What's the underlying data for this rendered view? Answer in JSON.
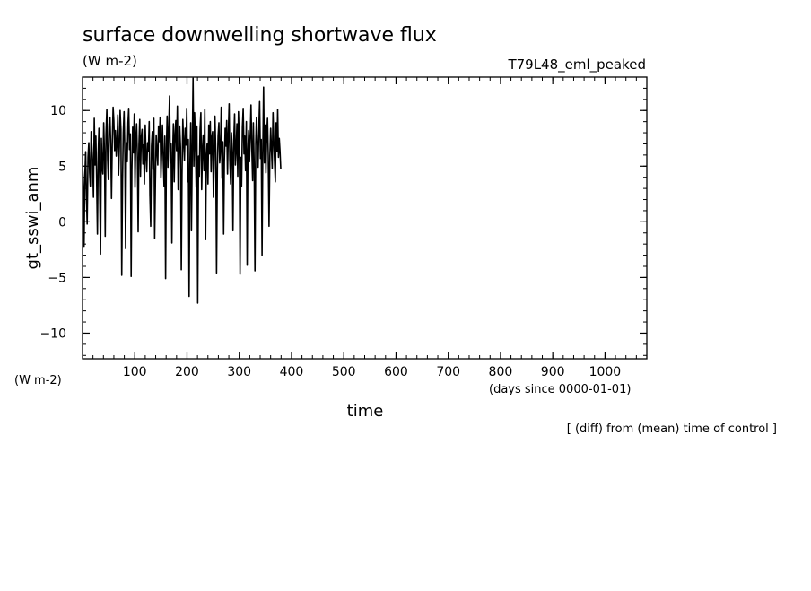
{
  "header": {
    "title": "surface downwelling shortwave flux",
    "units": "(W m-2)",
    "run": "T79L48_eml_peaked"
  },
  "footer": {
    "left_units": "(W m-2)",
    "x_units": "(days since 0000-01-01)",
    "note": "[ (diff) from (mean) time of control ]"
  },
  "chart_data": {
    "type": "line",
    "title": "surface downwelling shortwave flux",
    "xlabel": "time",
    "ylabel": "gt_sswi_anm",
    "xlim": [
      0,
      1080
    ],
    "ylim": [
      -12.3,
      13
    ],
    "xticks": [
      100,
      200,
      300,
      400,
      500,
      600,
      700,
      800,
      900,
      1000
    ],
    "yticks": [
      -10,
      -5,
      0,
      5,
      10
    ],
    "x_minor_step": 20,
    "y_minor_step": 1,
    "grid": false,
    "series": [
      {
        "x_start": 0,
        "x_step": 1.5,
        "values": [
          5.2,
          3.1,
          -2.2,
          4.1,
          6.3,
          2.0,
          -0.2,
          5.8,
          7.1,
          4.4,
          3.2,
          8.1,
          6.6,
          4.9,
          2.2,
          9.3,
          5.1,
          7.7,
          3.9,
          -1.1,
          6.2,
          8.4,
          2.6,
          -2.9,
          7.5,
          5.0,
          4.3,
          8.9,
          6.1,
          -1.3,
          7.9,
          10.1,
          5.6,
          3.8,
          8.8,
          9.4,
          6.7,
          2.1,
          7.3,
          10.3,
          9.1,
          6.4,
          8.2,
          5.9,
          7.0,
          9.6,
          4.2,
          6.8,
          10.0,
          8.3,
          -4.8,
          3.7,
          8.0,
          9.9,
          6.0,
          -2.4,
          7.1,
          5.4,
          8.9,
          10.2,
          6.5,
          7.9,
          -4.9,
          4.6,
          8.5,
          6.2,
          9.7,
          3.1,
          7.4,
          8.8,
          5.7,
          -0.9,
          6.9,
          9.2,
          4.1,
          7.6,
          8.3,
          5.2,
          6.9,
          3.4,
          8.7,
          5.9,
          4.5,
          7.1,
          6.3,
          9.0,
          2.4,
          -0.4,
          6.8,
          8.1,
          4.7,
          9.3,
          -1.5,
          3.3,
          7.8,
          6.4,
          5.1,
          8.6,
          7.2,
          9.4,
          4.0,
          6.1,
          8.7,
          5.6,
          3.2,
          7.7,
          -5.1,
          6.6,
          9.5,
          4.9,
          8.4,
          11.3,
          5.3,
          7.0,
          -1.9,
          6.2,
          8.8,
          3.6,
          7.9,
          9.1,
          6.4,
          10.4,
          2.9,
          5.7,
          8.6,
          6.7,
          -4.3,
          4.2,
          9.2,
          7.1,
          5.5,
          8.4,
          6.9,
          10.2,
          3.6,
          7.4,
          -6.7,
          5.1,
          8.9,
          -0.8,
          6.3,
          12.9,
          5.0,
          9.8,
          7.2,
          3.1,
          8.6,
          -7.3,
          5.9,
          4.1,
          8.3,
          9.8,
          2.9,
          6.5,
          7.8,
          4.6,
          10.1,
          -1.6,
          5.8,
          7.0,
          3.4,
          8.7,
          6.1,
          9.0,
          4.5,
          7.6,
          8.1,
          2.2,
          5.9,
          9.5,
          6.4,
          -4.6,
          4.8,
          7.7,
          8.9,
          5.3,
          6.6,
          10.3,
          3.9,
          7.2,
          -1.1,
          5.4,
          8.4,
          6.8,
          9.1,
          4.3,
          7.9,
          10.6,
          5.5,
          3.4,
          8.0,
          6.2,
          -0.8,
          7.3,
          9.7,
          5.1,
          6.4,
          8.8,
          4.1,
          9.9,
          7.5,
          -4.7,
          5.8,
          3.2,
          8.5,
          10.2,
          6.1,
          7.7,
          4.6,
          9.0,
          -3.9,
          6.3,
          8.2,
          5.4,
          7.8,
          10.5,
          6.6,
          3.7,
          8.9,
          5.2,
          -4.4,
          7.1,
          9.4,
          6.8,
          4.9,
          8.6,
          10.8,
          5.7,
          7.4,
          -3.0,
          6.1,
          12.1,
          5.3,
          8.7,
          4.4,
          7.9,
          9.3,
          6.0,
          -0.4,
          5.9,
          8.4,
          6.7,
          4.8,
          9.8,
          7.2,
          5.5,
          3.6,
          8.9,
          6.3,
          10.1,
          5.8,
          7.5,
          6.4,
          4.7
        ],
        "color": "#000000"
      }
    ]
  }
}
